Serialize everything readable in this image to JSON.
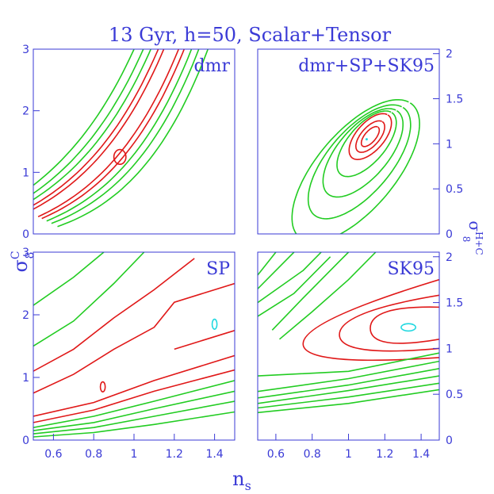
{
  "title": "13 Gyr, h=50, Scalar+Tensor",
  "xlabel": "n",
  "xlabel_sub": "s",
  "ylabel_left": "σ",
  "ylabel_left_sup": "C",
  "ylabel_left_sub": "8",
  "ylabel_right": "σ",
  "ylabel_right_sup": "H+C",
  "ylabel_right_sub": "8",
  "colors": {
    "axis": "#3a3ad6",
    "inner": "#e01818",
    "outer": "#22cc22",
    "best": "#22d8e0"
  },
  "chart_data": [
    {
      "type": "contour",
      "panel_label": "dmr",
      "xlim": [
        0.5,
        1.5
      ],
      "ylim": [
        0,
        3
      ],
      "yaxis": "left",
      "x_ticks": [],
      "y_ticks": [
        "0",
        "1",
        "2",
        "3"
      ],
      "y_tick_values": [
        0,
        1,
        2,
        3
      ],
      "ridge": {
        "a": 0.32,
        "b": 0.67,
        "k": 2.35,
        "x0": 0.5
      },
      "band_offsets": [
        -0.2,
        -0.15,
        -0.11,
        -0.07,
        -0.04,
        0.04,
        0.07,
        0.11,
        0.15,
        0.2
      ],
      "contour_colors": [
        "outer",
        "outer",
        "outer",
        "inner",
        "inner",
        "inner",
        "inner",
        "outer",
        "outer",
        "outer"
      ],
      "islands": [
        {
          "x": 0.93,
          "y": 1.25,
          "rx": 0.03,
          "ry": 0.12
        }
      ]
    },
    {
      "type": "contour",
      "panel_label": "dmr+SP+SK95",
      "xlim": [
        0.5,
        1.5
      ],
      "ylim": [
        0,
        2.05
      ],
      "yaxis": "right",
      "x_ticks": [],
      "y_ticks": [
        "0",
        "0.5",
        "1",
        "1.5",
        "2"
      ],
      "y_tick_values": [
        0,
        0.5,
        1,
        1.5,
        2
      ],
      "center": {
        "x": 1.1,
        "y": 1.05
      },
      "ellipses": [
        {
          "cx": 1.12,
          "cy": 1.08,
          "len": 0.14,
          "w": 0.06,
          "color": "inner"
        },
        {
          "cx": 1.12,
          "cy": 1.08,
          "len": 0.22,
          "w": 0.1,
          "color": "inner"
        },
        {
          "cx": 1.12,
          "cy": 1.08,
          "len": 0.32,
          "w": 0.15,
          "color": "inner"
        },
        {
          "cx": 1.1,
          "cy": 1.0,
          "len": 0.46,
          "w": 0.2,
          "color": "outer"
        },
        {
          "cx": 1.08,
          "cy": 0.9,
          "len": 0.62,
          "w": 0.27,
          "color": "outer"
        },
        {
          "cx": 1.06,
          "cy": 0.8,
          "len": 0.8,
          "w": 0.34,
          "color": "outer"
        },
        {
          "cx": 1.04,
          "cy": 0.7,
          "len": 1.0,
          "w": 0.42,
          "color": "outer"
        }
      ],
      "best_fit": {
        "x": 1.1,
        "y": 1.05
      }
    },
    {
      "type": "contour",
      "panel_label": "SP",
      "xlim": [
        0.5,
        1.5
      ],
      "ylim": [
        0,
        3
      ],
      "yaxis": "left",
      "x_ticks": [
        "0.6",
        "0.8",
        "1",
        "1.2",
        "1.4"
      ],
      "x_tick_values": [
        0.6,
        0.8,
        1.0,
        1.2,
        1.4
      ],
      "y_ticks": [
        "0",
        "1",
        "2",
        "3"
      ],
      "y_tick_values": [
        0,
        1,
        2,
        3
      ],
      "lines": [
        {
          "pts": [
            [
              0.5,
              0.05
            ],
            [
              0.8,
              0.12
            ],
            [
              1.1,
              0.25
            ],
            [
              1.5,
              0.45
            ]
          ],
          "color": "outer"
        },
        {
          "pts": [
            [
              0.5,
              0.1
            ],
            [
              0.8,
              0.2
            ],
            [
              1.1,
              0.38
            ],
            [
              1.5,
              0.62
            ]
          ],
          "color": "outer"
        },
        {
          "pts": [
            [
              0.5,
              0.15
            ],
            [
              0.8,
              0.28
            ],
            [
              1.1,
              0.5
            ],
            [
              1.5,
              0.78
            ]
          ],
          "color": "outer"
        },
        {
          "pts": [
            [
              0.5,
              0.2
            ],
            [
              0.8,
              0.38
            ],
            [
              1.1,
              0.62
            ],
            [
              1.5,
              0.95
            ]
          ],
          "color": "outer"
        },
        {
          "pts": [
            [
              0.5,
              0.28
            ],
            [
              0.8,
              0.48
            ],
            [
              1.1,
              0.78
            ],
            [
              1.5,
              1.12
            ]
          ],
          "color": "inner"
        },
        {
          "pts": [
            [
              0.5,
              0.38
            ],
            [
              0.8,
              0.6
            ],
            [
              1.1,
              0.95
            ],
            [
              1.5,
              1.35
            ]
          ],
          "color": "inner"
        },
        {
          "pts": [
            [
              0.5,
              0.75
            ],
            [
              0.7,
              1.05
            ],
            [
              0.9,
              1.45
            ],
            [
              1.1,
              1.8
            ],
            [
              1.2,
              2.2
            ],
            [
              1.5,
              2.5
            ]
          ],
          "color": "inner"
        },
        {
          "pts": [
            [
              0.5,
              1.1
            ],
            [
              0.7,
              1.45
            ],
            [
              0.9,
              1.95
            ],
            [
              1.1,
              2.4
            ],
            [
              1.3,
              2.9
            ]
          ],
          "color": "inner"
        },
        {
          "pts": [
            [
              0.5,
              1.5
            ],
            [
              0.7,
              1.9
            ],
            [
              0.9,
              2.5
            ],
            [
              1.05,
              3.0
            ]
          ],
          "color": "outer"
        },
        {
          "pts": [
            [
              0.5,
              2.15
            ],
            [
              0.7,
              2.6
            ],
            [
              0.85,
              3.0
            ]
          ],
          "color": "outer"
        },
        {
          "pts": [
            [
              1.2,
              1.45
            ],
            [
              1.3,
              1.55
            ],
            [
              1.45,
              1.7
            ],
            [
              1.5,
              1.75
            ]
          ],
          "color": "inner"
        }
      ],
      "islands": [
        {
          "x": 0.845,
          "y": 0.85,
          "rx": 0.012,
          "ry": 0.08,
          "color": "inner"
        },
        {
          "x": 1.4,
          "y": 1.85,
          "rx": 0.012,
          "ry": 0.08,
          "color": "best"
        }
      ]
    },
    {
      "type": "contour",
      "panel_label": "SK95",
      "xlim": [
        0.5,
        1.5
      ],
      "ylim": [
        0,
        2.05
      ],
      "yaxis": "right",
      "x_ticks": [
        "0.6",
        "0.8",
        "1",
        "1.2",
        "1.4"
      ],
      "x_tick_values": [
        0.6,
        0.8,
        1.0,
        1.2,
        1.4
      ],
      "y_ticks": [
        "0",
        "0.5",
        "1",
        "1.5",
        "2"
      ],
      "y_tick_values": [
        0,
        0.5,
        1,
        1.5,
        2
      ],
      "wedges": [
        {
          "tip": [
            0.75,
            1.05
          ],
          "top": [
            1.5,
            1.75
          ],
          "bot": [
            1.5,
            0.9
          ],
          "color": "inner"
        },
        {
          "tip": [
            0.95,
            1.15
          ],
          "top": [
            1.5,
            1.58
          ],
          "bot": [
            1.5,
            1.0
          ],
          "color": "inner"
        },
        {
          "tip": [
            1.12,
            1.22
          ],
          "top": [
            1.5,
            1.45
          ],
          "bot": [
            1.5,
            1.1
          ],
          "color": "inner"
        }
      ],
      "lines": [
        {
          "pts": [
            [
              0.5,
              0.3
            ],
            [
              1.0,
              0.4
            ],
            [
              1.5,
              0.55
            ]
          ],
          "color": "outer"
        },
        {
          "pts": [
            [
              0.5,
              0.35
            ],
            [
              1.0,
              0.47
            ],
            [
              1.5,
              0.62
            ]
          ],
          "color": "outer"
        },
        {
          "pts": [
            [
              0.5,
              0.4
            ],
            [
              1.0,
              0.54
            ],
            [
              1.5,
              0.7
            ]
          ],
          "color": "outer"
        },
        {
          "pts": [
            [
              0.5,
              0.46
            ],
            [
              1.0,
              0.6
            ],
            [
              1.5,
              0.78
            ]
          ],
          "color": "outer"
        },
        {
          "pts": [
            [
              0.5,
              0.53
            ],
            [
              1.0,
              0.67
            ],
            [
              1.5,
              0.86
            ]
          ],
          "color": "outer"
        },
        {
          "pts": [
            [
              0.5,
              0.7
            ],
            [
              1.0,
              0.75
            ],
            [
              1.5,
              0.95
            ]
          ],
          "color": "outer"
        },
        {
          "pts": [
            [
              0.5,
              1.35
            ],
            [
              0.7,
              1.6
            ],
            [
              0.9,
              2.0
            ]
          ],
          "color": "outer"
        },
        {
          "pts": [
            [
              0.5,
              1.5
            ],
            [
              0.75,
              1.85
            ],
            [
              0.85,
              2.05
            ]
          ],
          "color": "outer"
        },
        {
          "pts": [
            [
              0.5,
              1.65
            ],
            [
              0.7,
              2.05
            ]
          ],
          "color": "outer"
        },
        {
          "pts": [
            [
              0.5,
              1.8
            ],
            [
              0.6,
              2.05
            ]
          ],
          "color": "outer"
        },
        {
          "pts": [
            [
              0.62,
              1.1
            ],
            [
              0.8,
              1.4
            ],
            [
              1.0,
              1.75
            ],
            [
              1.15,
              2.05
            ]
          ],
          "color": "outer"
        },
        {
          "pts": [
            [
              0.58,
              1.2
            ],
            [
              0.75,
              1.55
            ],
            [
              0.95,
              1.95
            ],
            [
              1.0,
              2.05
            ]
          ],
          "color": "outer"
        }
      ],
      "islands": [
        {
          "x": 1.33,
          "y": 1.23,
          "rx": 0.04,
          "ry": 0.04,
          "color": "best"
        }
      ]
    }
  ]
}
